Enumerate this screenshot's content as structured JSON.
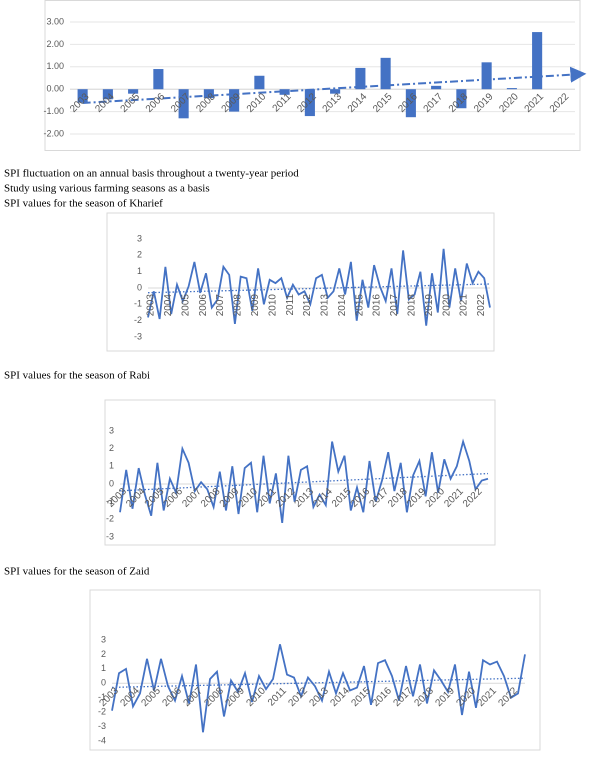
{
  "lines": [
    "SPI fluctuation on an annual basis throughout a twenty-year period",
    "Study using various farming seasons as a basis",
    "SPI values for the season of Kharief",
    "SPI values for the season of Rabi",
    "SPI values for the season of Zaid"
  ],
  "chart_data": [
    {
      "type": "bar",
      "color": "#4472c4",
      "grid": true,
      "categories": [
        "2003",
        "2004",
        "2005",
        "2006",
        "2007",
        "2008",
        "2009",
        "2010",
        "2011",
        "2012",
        "2013",
        "2014",
        "2015",
        "2016",
        "2017",
        "2018",
        "2019",
        "2020",
        "2021",
        "2022"
      ],
      "values": [
        -0.6,
        -0.45,
        -0.2,
        0.9,
        -1.3,
        -0.4,
        -1.0,
        0.6,
        -0.25,
        -1.2,
        -0.2,
        0.95,
        1.4,
        -1.25,
        0.15,
        -0.85,
        1.2,
        0.05,
        2.55,
        0
      ],
      "ylim": [
        -2,
        3
      ],
      "yticks": [
        {
          "value": 3,
          "label": "3.00"
        },
        {
          "value": 2,
          "label": "2.00"
        },
        {
          "value": 1,
          "label": "1.00"
        },
        {
          "value": 0,
          "label": "0.00"
        },
        {
          "value": -1,
          "label": "-1.00"
        },
        {
          "value": -2,
          "label": "-2.00"
        }
      ]
    },
    {
      "type": "line",
      "color": "#4472c4",
      "grid": false,
      "categories": [
        "2003",
        null,
        null,
        "2004",
        null,
        null,
        "2005",
        null,
        null,
        "2006",
        null,
        null,
        "2007",
        null,
        null,
        "2008",
        null,
        null,
        "2009",
        null,
        null,
        "2010",
        null,
        null,
        "2011",
        null,
        null,
        "2012",
        null,
        null,
        "2013",
        null,
        null,
        "2014",
        null,
        null,
        "2015",
        null,
        null,
        "2016",
        null,
        null,
        "2017",
        null,
        null,
        "2018",
        null,
        null,
        "2019",
        null,
        null,
        "2020",
        null,
        null,
        "2021",
        null,
        null,
        "2022",
        null,
        null
      ],
      "values": [
        -1.8,
        -0.2,
        -1.9,
        1.3,
        -1.6,
        0.2,
        -0.8,
        0.1,
        1.6,
        -0.3,
        0.9,
        -1.2,
        -0.7,
        1.3,
        0.8,
        -2.2,
        0.7,
        0.6,
        -1.4,
        1.2,
        -1.0,
        0.5,
        0.3,
        0.6,
        -0.6,
        0.2,
        -0.4,
        -0.2,
        -1.0,
        0.6,
        0.8,
        -0.6,
        -0.2,
        1.2,
        -0.4,
        1.6,
        -2.0,
        0.5,
        -1.2,
        1.4,
        0.1,
        -0.8,
        1.2,
        -1.6,
        2.3,
        -0.7,
        -0.4,
        1.0,
        -2.3,
        0.9,
        -1.5,
        2.4,
        -1.2,
        1.2,
        -0.8,
        1.5,
        0.3,
        1.0,
        0.6,
        -1.2
      ],
      "ylim": [
        -3,
        3
      ],
      "yticks": [
        3,
        2,
        1,
        0,
        -1,
        -2,
        -3
      ]
    },
    {
      "type": "line",
      "color": "#4472c4",
      "grid": false,
      "categories": [
        "2003",
        null,
        null,
        "2004",
        null,
        null,
        "2005",
        null,
        null,
        "2006",
        null,
        null,
        "2007",
        null,
        null,
        "2008",
        null,
        null,
        "2009",
        null,
        null,
        "2010",
        null,
        null,
        "2011",
        null,
        null,
        "2012",
        null,
        null,
        "2013",
        null,
        null,
        "2014",
        null,
        null,
        "2015",
        null,
        null,
        "2016",
        null,
        null,
        "2017",
        null,
        null,
        "2018",
        null,
        null,
        "2019",
        null,
        null,
        "2020",
        null,
        null,
        "2021",
        null,
        null,
        "2022",
        null,
        null
      ],
      "values": [
        -1.6,
        0.8,
        -1.4,
        0.9,
        -0.6,
        -1.8,
        1.2,
        -1.5,
        0.3,
        -0.5,
        2.0,
        1.2,
        -0.4,
        0.1,
        -0.3,
        -1.3,
        0.7,
        -1.5,
        1.0,
        -1.7,
        0.9,
        1.2,
        -1.6,
        1.6,
        -1.1,
        0.6,
        -2.2,
        1.6,
        -1.0,
        0.8,
        1.0,
        -1.3,
        -0.6,
        -1.2,
        2.4,
        0.7,
        1.6,
        -1.5,
        -0.2,
        -1.6,
        1.3,
        -1.0,
        0.2,
        1.8,
        -0.4,
        1.2,
        -1.6,
        0.5,
        1.3,
        -0.7,
        1.8,
        -0.5,
        1.4,
        0.3,
        1.0,
        2.4,
        1.3,
        -0.3,
        0.2,
        0.3
      ],
      "ylim": [
        -3,
        3
      ],
      "yticks": [
        3,
        2,
        1,
        0,
        -1,
        -2,
        -3
      ]
    },
    {
      "type": "line",
      "color": "#4472c4",
      "grid": false,
      "categories": [
        "2003",
        null,
        null,
        "2004",
        null,
        null,
        "2005",
        null,
        null,
        "2006",
        null,
        null,
        "2007",
        null,
        null,
        "2008",
        null,
        null,
        "2009",
        null,
        null,
        "2010",
        null,
        null,
        "2011",
        null,
        null,
        "2012",
        null,
        null,
        "2013",
        null,
        null,
        "2014",
        null,
        null,
        "2015",
        null,
        null,
        "2016",
        null,
        null,
        "2017",
        null,
        null,
        "2018",
        null,
        null,
        "2019",
        null,
        null,
        "2020",
        null,
        null,
        "2021",
        null,
        null,
        "2022",
        null,
        null
      ],
      "values": [
        -1.9,
        0.7,
        1.0,
        -1.6,
        -0.7,
        1.7,
        -0.5,
        1.7,
        -0.2,
        -1.2,
        0.5,
        -1.4,
        1.3,
        -3.4,
        0.3,
        0.8,
        -2.3,
        0.2,
        -0.6,
        0.7,
        -1.3,
        0.5,
        -0.4,
        0.3,
        2.7,
        0.6,
        0.4,
        -0.9,
        0.4,
        -0.2,
        -1.2,
        0.8,
        -0.7,
        0.7,
        -0.5,
        -0.3,
        1.2,
        -1.5,
        1.4,
        1.6,
        0.5,
        -1.2,
        1.2,
        -0.9,
        1.3,
        -1.4,
        0.9,
        0.2,
        -0.6,
        1.3,
        -2.2,
        0.8,
        -1.7,
        1.6,
        1.3,
        1.5,
        0.5,
        -1.0,
        -0.7,
        2.0
      ],
      "ylim": [
        -4,
        3
      ],
      "yticks": [
        3,
        2,
        1,
        0,
        -1,
        -2,
        -3,
        -4
      ]
    }
  ]
}
